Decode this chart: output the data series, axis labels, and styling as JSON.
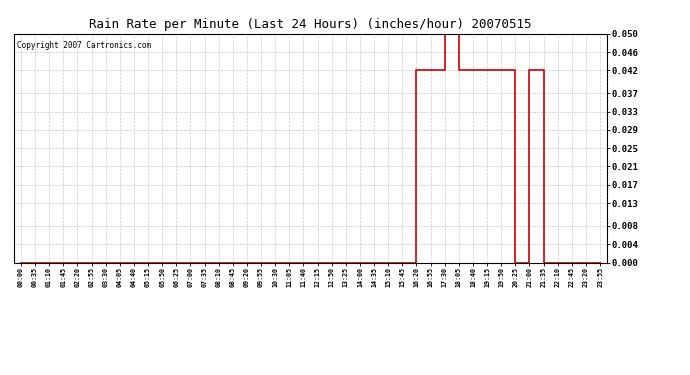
{
  "title": "Rain Rate per Minute (Last 24 Hours) (inches/hour) 20070515",
  "copyright": "Copyright 2007 Cartronics.com",
  "line_color": "#cc0000",
  "bg_color": "#ffffff",
  "grid_color": "#c8c8c8",
  "axis_label_color": "#000000",
  "ylim": [
    0.0,
    0.05
  ],
  "yticks": [
    0.0,
    0.004,
    0.008,
    0.013,
    0.017,
    0.021,
    0.025,
    0.029,
    0.033,
    0.037,
    0.042,
    0.046,
    0.05
  ],
  "x_labels": [
    "00:00",
    "00:35",
    "01:10",
    "01:45",
    "02:20",
    "02:55",
    "03:30",
    "04:05",
    "04:40",
    "05:15",
    "05:50",
    "06:25",
    "07:00",
    "07:35",
    "08:10",
    "08:45",
    "09:20",
    "09:55",
    "10:30",
    "11:05",
    "11:40",
    "12:15",
    "12:50",
    "13:25",
    "14:00",
    "14:35",
    "15:10",
    "15:45",
    "16:20",
    "16:55",
    "17:30",
    "18:05",
    "18:40",
    "19:15",
    "19:50",
    "20:25",
    "21:00",
    "21:35",
    "22:10",
    "22:45",
    "23:20",
    "23:55"
  ],
  "y_values": [
    0.0,
    0.0,
    0.0,
    0.0,
    0.0,
    0.0,
    0.0,
    0.0,
    0.0,
    0.0,
    0.0,
    0.0,
    0.0,
    0.0,
    0.0,
    0.0,
    0.0,
    0.0,
    0.0,
    0.0,
    0.0,
    0.0,
    0.0,
    0.0,
    0.0,
    0.0,
    0.0,
    0.0,
    0.042,
    0.042,
    0.05,
    0.042,
    0.042,
    0.042,
    0.042,
    0.0,
    0.042,
    0.0,
    0.0,
    0.0,
    0.0,
    0.0
  ]
}
